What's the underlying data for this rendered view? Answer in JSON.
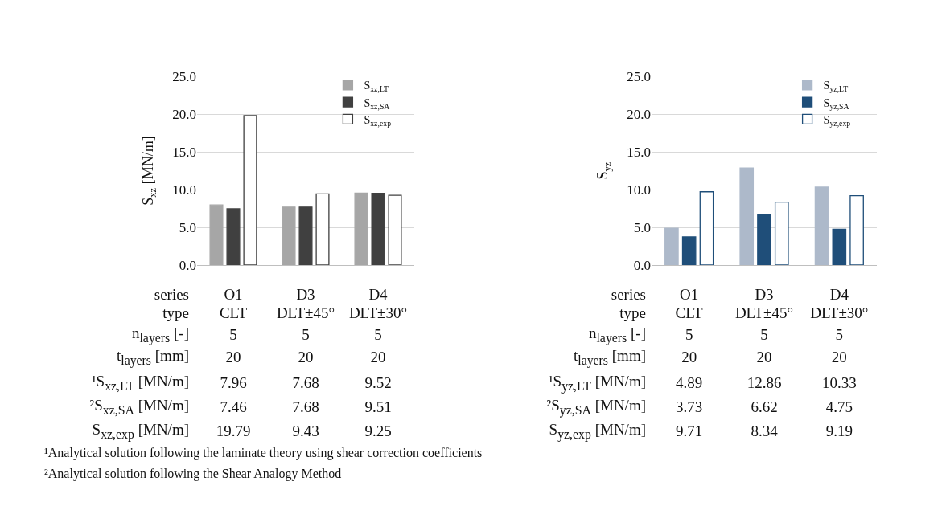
{
  "chart_data": [
    {
      "type": "bar",
      "ylabel": "S$_{xz}$ [MN/m]",
      "categories": [
        "O1",
        "D3",
        "D4"
      ],
      "series": [
        {
          "name": "S$_{xz,LT}$",
          "color": "#a6a6a6",
          "values": [
            7.96,
            7.68,
            9.52
          ]
        },
        {
          "name": "S$_{xz,SA}$",
          "color": "#404040",
          "values": [
            7.46,
            7.68,
            9.51
          ]
        },
        {
          "name": "S$_{xz,exp}$",
          "color": "#ffffff",
          "values": [
            19.79,
            9.43,
            9.25
          ]
        }
      ],
      "ylim": [
        0,
        25
      ],
      "yticks": [
        {
          "value": 0,
          "label": "0.0"
        },
        {
          "value": 5,
          "label": "5.0"
        },
        {
          "value": 10,
          "label": "10.0"
        },
        {
          "value": 15,
          "label": "15.0"
        },
        {
          "value": 20,
          "label": "20.0"
        },
        {
          "value": 25,
          "label": "25.0"
        }
      ],
      "grid": "y",
      "legend": "top right",
      "data_labels": true,
      "annotations": [
        "series",
        "type",
        "CLT",
        "DLT±45°",
        "DLT±30°",
        "n$_{layers}$ [-]",
        "5",
        "5",
        "5",
        "t$_{layers}$ [mm]",
        "20",
        "20",
        "20",
        "¹S$_{xz,LT}$ [MN/m]",
        "²S$_{xz,SA}$ [MN/m]",
        "S$_{xz,exp}$ [MN/m]",
        "¹Analytical solution following the laminate theory using shear correction coefficients",
        "²Analytical solution following the Shear Analogy Method"
      ]
    },
    {
      "type": "bar",
      "ylabel": "S$_{yz}$",
      "categories": [
        "O1",
        "D3",
        "D4"
      ],
      "series": [
        {
          "name": "S$_{yz,LT}$",
          "color": "#adb9ca",
          "values": [
            4.89,
            12.86,
            10.33
          ]
        },
        {
          "name": "S$_{yz,SA}$",
          "color": "#1f4e79",
          "values": [
            3.73,
            6.62,
            4.75
          ]
        },
        {
          "name": "S$_{yz,exp}$",
          "color": "#ffffff",
          "values": [
            9.71,
            8.34,
            9.19
          ]
        }
      ],
      "ylim": [
        0,
        25
      ],
      "yticks": [
        {
          "value": 0,
          "label": "0.0"
        },
        {
          "value": 5,
          "label": "5.0"
        },
        {
          "value": 10,
          "label": "10.0"
        },
        {
          "value": 15,
          "label": "15.0"
        },
        {
          "value": 20,
          "label": "20.0"
        },
        {
          "value": 25,
          "label": "25.0"
        }
      ],
      "grid": "y",
      "legend": "top right",
      "data_labels": true,
      "annotations": [
        "series",
        "type",
        "CLT",
        "DLT±45°",
        "DLT±30°",
        "n$_{layers}$ [-]",
        "5",
        "5",
        "5",
        "t$_{layers}$ [mm]",
        "20",
        "20",
        "20",
        "¹S$_{yz,LT}$ [MN/m]",
        "²S$_{yz,SA}$ [MN/m]",
        "S$_{yz,exp}$ [MN/m]"
      ]
    }
  ]
}
